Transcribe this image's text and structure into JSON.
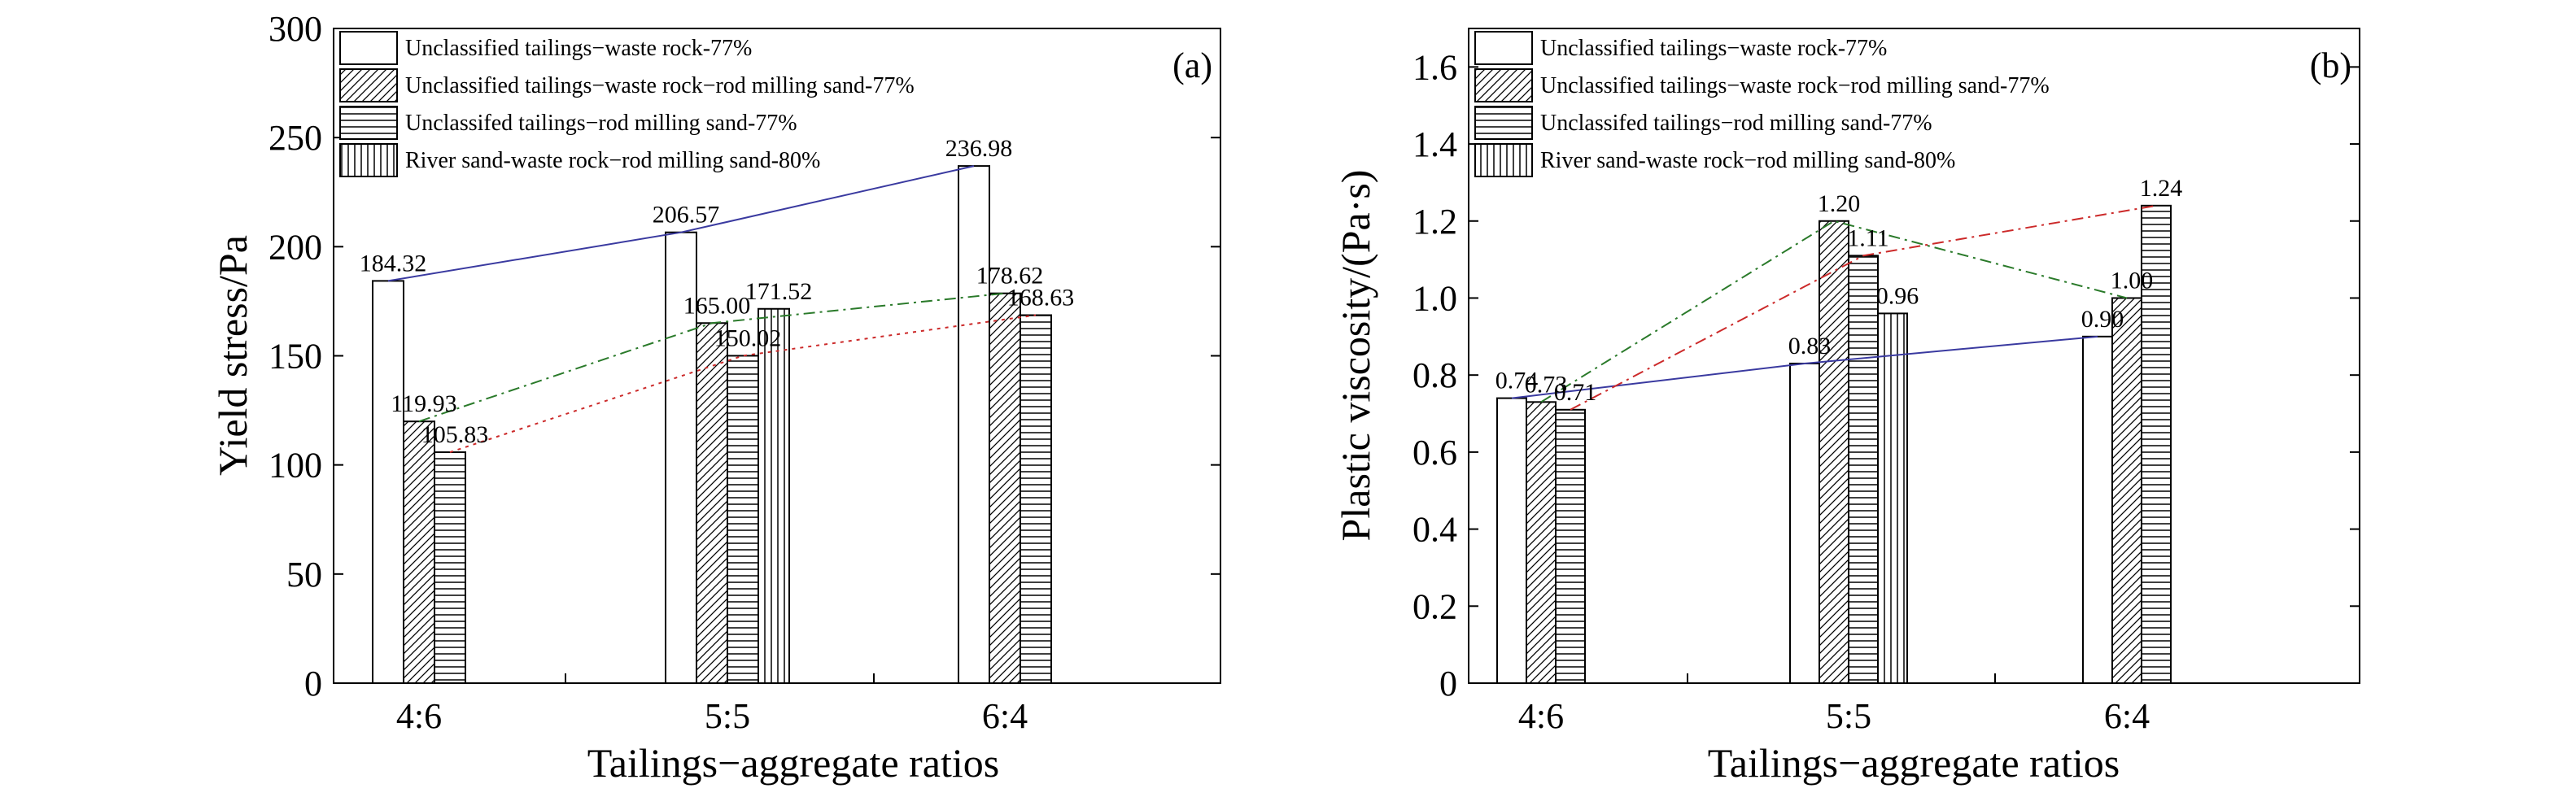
{
  "figure": {
    "panel_a_tag": "(a)",
    "panel_b_tag": "(b)"
  },
  "legend": {
    "entries": [
      "Unclassified tailings−waste rock-77%",
      "Unclassified tailings−waste rock−rod milling sand-77%",
      "Unclassifed tailings−rod milling sand-77%",
      "River sand-waste rock−rod milling sand-80%"
    ]
  },
  "colors": {
    "bar_fill": "#ffffff",
    "bar_stroke": "#000000",
    "line_blue": "#3a3aa0",
    "line_green": "#2a7a2a",
    "line_red": "#cc2a2a"
  },
  "chart_data": [
    {
      "type": "bar",
      "panel": "(a)",
      "xlabel": "Tailings−aggregate ratios",
      "ylabel": "Yield stress/Pa",
      "categories": [
        "4:6",
        "5:5",
        "6:4"
      ],
      "ylim": [
        0,
        300
      ],
      "yticks": [
        0,
        50,
        100,
        150,
        200,
        250,
        300
      ],
      "legend_position": "top-left",
      "series": [
        {
          "name": "Unclassified tailings−waste rock-77%",
          "pattern": "blank",
          "values": [
            184.32,
            206.57,
            236.98
          ],
          "labels": [
            "184.32",
            "206.57",
            "236.98"
          ]
        },
        {
          "name": "Unclassified tailings−waste rock−rod milling sand-77%",
          "pattern": "diagonal",
          "values": [
            119.93,
            165.0,
            178.62
          ],
          "labels": [
            "119.93",
            "165.00",
            "178.62"
          ]
        },
        {
          "name": "Unclassifed tailings−rod milling sand-77%",
          "pattern": "horizontal",
          "values": [
            105.83,
            150.02,
            168.63
          ],
          "labels": [
            "105.83",
            "150.02",
            "168.63"
          ]
        },
        {
          "name": "River sand-waste rock−rod milling sand-80%",
          "pattern": "vertical",
          "values": [
            null,
            171.52,
            null
          ],
          "labels": [
            "",
            "171.52",
            ""
          ]
        }
      ],
      "trend_lines": [
        {
          "series": 0,
          "style": "solid",
          "color": "#3a3aa0"
        },
        {
          "series": 1,
          "style": "dashdot",
          "color": "#2a7a2a"
        },
        {
          "series": 2,
          "style": "dotted",
          "color": "#cc2a2a"
        }
      ]
    },
    {
      "type": "bar",
      "panel": "(b)",
      "xlabel": "Tailings−aggregate ratios",
      "ylabel": "Plastic viscosity/(Pa·s)",
      "categories": [
        "4:6",
        "5:5",
        "6:4"
      ],
      "ylim": [
        0,
        1.7
      ],
      "yticks": [
        0,
        0.2,
        0.4,
        0.6,
        0.8,
        1.0,
        1.2,
        1.4,
        1.6
      ],
      "ytick_labels": [
        "0",
        "0.2",
        "0.4",
        "0.6",
        "0.8",
        "1.0",
        "1.2",
        "1.4",
        "1.6"
      ],
      "legend_position": "top-left",
      "series": [
        {
          "name": "Unclassified tailings−waste rock-77%",
          "pattern": "blank",
          "values": [
            0.74,
            0.83,
            0.9
          ],
          "labels": [
            "0.74",
            "0.83",
            "0.90"
          ]
        },
        {
          "name": "Unclassified tailings−waste rock−rod milling sand-77%",
          "pattern": "diagonal",
          "values": [
            0.73,
            1.2,
            1.0
          ],
          "labels": [
            "0.73",
            "1.20",
            "1.00"
          ]
        },
        {
          "name": "Unclassifed tailings−rod milling sand-77%",
          "pattern": "horizontal",
          "values": [
            0.71,
            1.11,
            1.24
          ],
          "labels": [
            "0.71",
            "1.11",
            "1.24"
          ]
        },
        {
          "name": "River sand-waste rock−rod milling sand-80%",
          "pattern": "vertical",
          "values": [
            null,
            0.96,
            null
          ],
          "labels": [
            "",
            "0.96",
            ""
          ]
        }
      ],
      "trend_lines": [
        {
          "series": 0,
          "style": "solid",
          "color": "#3a3aa0"
        },
        {
          "series": 1,
          "style": "dashdot",
          "color": "#2a7a2a"
        },
        {
          "series": 2,
          "style": "dashdot",
          "color": "#cc2a2a"
        }
      ]
    }
  ]
}
